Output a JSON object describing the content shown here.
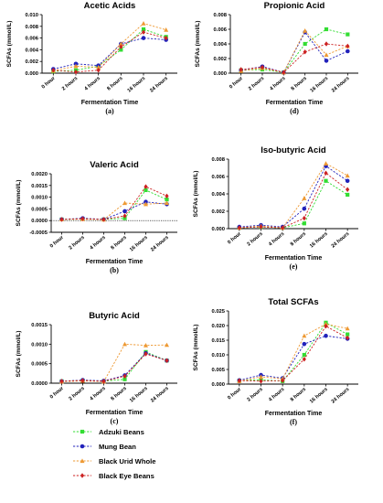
{
  "categories": [
    "0 hour",
    "2 hours",
    "4 hours",
    "8 hours",
    "16 hours",
    "24 hours"
  ],
  "xlabel": "Fermentation Time",
  "ylabel": "SCFAs (mmol/L)",
  "legend": [
    {
      "name": "Adzuki Beans",
      "color": "#33dd33",
      "marker": "square"
    },
    {
      "name": "Mung Bean",
      "color": "#2222bb",
      "marker": "circle"
    },
    {
      "name": "Black Urid Whole",
      "color": "#ee9933",
      "marker": "triangle"
    },
    {
      "name": "Black Eye Beans",
      "color": "#cc2222",
      "marker": "diamond"
    }
  ],
  "chart_data": [
    {
      "type": "line",
      "title": "Acetic Acids",
      "panel_label": "(a)",
      "ylim": [
        0,
        0.01
      ],
      "yticks": [
        "0.000",
        "0.002",
        "0.004",
        "0.006",
        "0.008",
        "0.010"
      ],
      "series": [
        {
          "name": "Adzuki Beans",
          "values": [
            0.0003,
            0.0005,
            0.0012,
            0.004,
            0.0075,
            0.0062
          ]
        },
        {
          "name": "Mung Bean",
          "values": [
            0.0007,
            0.0016,
            0.0013,
            0.005,
            0.006,
            0.0057
          ]
        },
        {
          "name": "Black Urid Whole",
          "values": [
            0.0004,
            0.0012,
            0.001,
            0.005,
            0.0085,
            0.0074
          ]
        },
        {
          "name": "Black Eye Beans",
          "values": [
            0.0005,
            0.0002,
            0.0005,
            0.0045,
            0.007,
            0.006
          ]
        }
      ]
    },
    {
      "type": "line",
      "title": "Propionic Acid",
      "panel_label": "(d)",
      "ylim": [
        0,
        0.008
      ],
      "yticks": [
        "0.000",
        "0.002",
        "0.004",
        "0.006",
        "0.008"
      ],
      "series": [
        {
          "name": "Adzuki Beans",
          "values": [
            0.0004,
            0.0005,
            0.0001,
            0.004,
            0.006,
            0.0053
          ]
        },
        {
          "name": "Mung Bean",
          "values": [
            0.0004,
            0.0009,
            0.0001,
            0.0056,
            0.0017,
            0.003
          ]
        },
        {
          "name": "Black Urid Whole",
          "values": [
            0.0003,
            0.0007,
            0.0001,
            0.0058,
            0.0025,
            0.0037
          ]
        },
        {
          "name": "Black Eye Beans",
          "values": [
            0.0005,
            0.0008,
            0.0001,
            0.0029,
            0.004,
            0.0037
          ]
        }
      ]
    },
    {
      "type": "line",
      "title": "Valeric Acid",
      "panel_label": "(b)",
      "ylim": [
        -0.0005,
        0.002
      ],
      "yticks": [
        "-0.0005",
        "0.0000",
        "0.0005",
        "0.0010",
        "0.0015",
        "0.0020"
      ],
      "series": [
        {
          "name": "Adzuki Beans",
          "values": [
            5e-05,
            7e-05,
            5e-05,
            0.0001,
            0.0013,
            0.0009
          ]
        },
        {
          "name": "Mung Bean",
          "values": [
            5e-05,
            0.0001,
            5e-05,
            0.0004,
            0.0008,
            0.0007
          ]
        },
        {
          "name": "Black Urid Whole",
          "values": [
            5e-05,
            6e-05,
            4e-05,
            0.00075,
            0.0007,
            0.00075
          ]
        },
        {
          "name": "Black Eye Beans",
          "values": [
            5e-05,
            8e-05,
            5e-05,
            0.0002,
            0.00145,
            0.00105
          ]
        }
      ]
    },
    {
      "type": "line",
      "title": "Iso-butyric Acid",
      "panel_label": "(e)",
      "ylim": [
        0,
        0.008
      ],
      "yticks": [
        "0.000",
        "0.002",
        "0.004",
        "0.006",
        "0.008"
      ],
      "series": [
        {
          "name": "Adzuki Beans",
          "values": [
            0.0001,
            0.0002,
            0.0001,
            0.0006,
            0.0055,
            0.0039
          ]
        },
        {
          "name": "Mung Bean",
          "values": [
            0.0002,
            0.0004,
            0.0002,
            0.0023,
            0.0072,
            0.0055
          ]
        },
        {
          "name": "Black Urid Whole",
          "values": [
            0.0001,
            0.0003,
            0.0001,
            0.0035,
            0.0075,
            0.0061
          ]
        },
        {
          "name": "Black Eye Beans",
          "values": [
            0.0001,
            0.0002,
            0.0001,
            0.0012,
            0.0064,
            0.0045
          ]
        }
      ]
    },
    {
      "type": "line",
      "title": "Butyric Acid",
      "panel_label": "(c)",
      "ylim": [
        0,
        0.0015
      ],
      "yticks": [
        "0.0000",
        "0.0005",
        "0.0010",
        "0.0015"
      ],
      "series": [
        {
          "name": "Adzuki Beans",
          "values": [
            5e-05,
            7e-05,
            5e-05,
            0.0001,
            0.0008,
            0.00058
          ]
        },
        {
          "name": "Mung Bean",
          "values": [
            5e-05,
            8e-05,
            6e-05,
            0.0002,
            0.00077,
            0.00058
          ]
        },
        {
          "name": "Black Urid Whole",
          "values": [
            4e-05,
            6e-05,
            4e-05,
            0.001,
            0.00097,
            0.00098
          ]
        },
        {
          "name": "Black Eye Beans",
          "values": [
            5e-05,
            7e-05,
            5e-05,
            0.00018,
            0.00075,
            0.00058
          ]
        }
      ]
    },
    {
      "type": "line",
      "title": "Total SCFAs",
      "panel_label": "(f)",
      "ylim": [
        0,
        0.025
      ],
      "yticks": [
        "0.000",
        "0.005",
        "0.010",
        "0.015",
        "0.020",
        "0.025"
      ],
      "series": [
        {
          "name": "Adzuki Beans",
          "values": [
            0.0012,
            0.0015,
            0.001,
            0.01,
            0.021,
            0.017
          ]
        },
        {
          "name": "Mung Bean",
          "values": [
            0.0013,
            0.0031,
            0.002,
            0.0137,
            0.0165,
            0.0155
          ]
        },
        {
          "name": "Black Urid Whole",
          "values": [
            0.001,
            0.0025,
            0.0018,
            0.0165,
            0.0205,
            0.019
          ]
        },
        {
          "name": "Black Eye Beans",
          "values": [
            0.0012,
            0.001,
            0.0012,
            0.0085,
            0.0198,
            0.0158
          ]
        }
      ]
    }
  ]
}
